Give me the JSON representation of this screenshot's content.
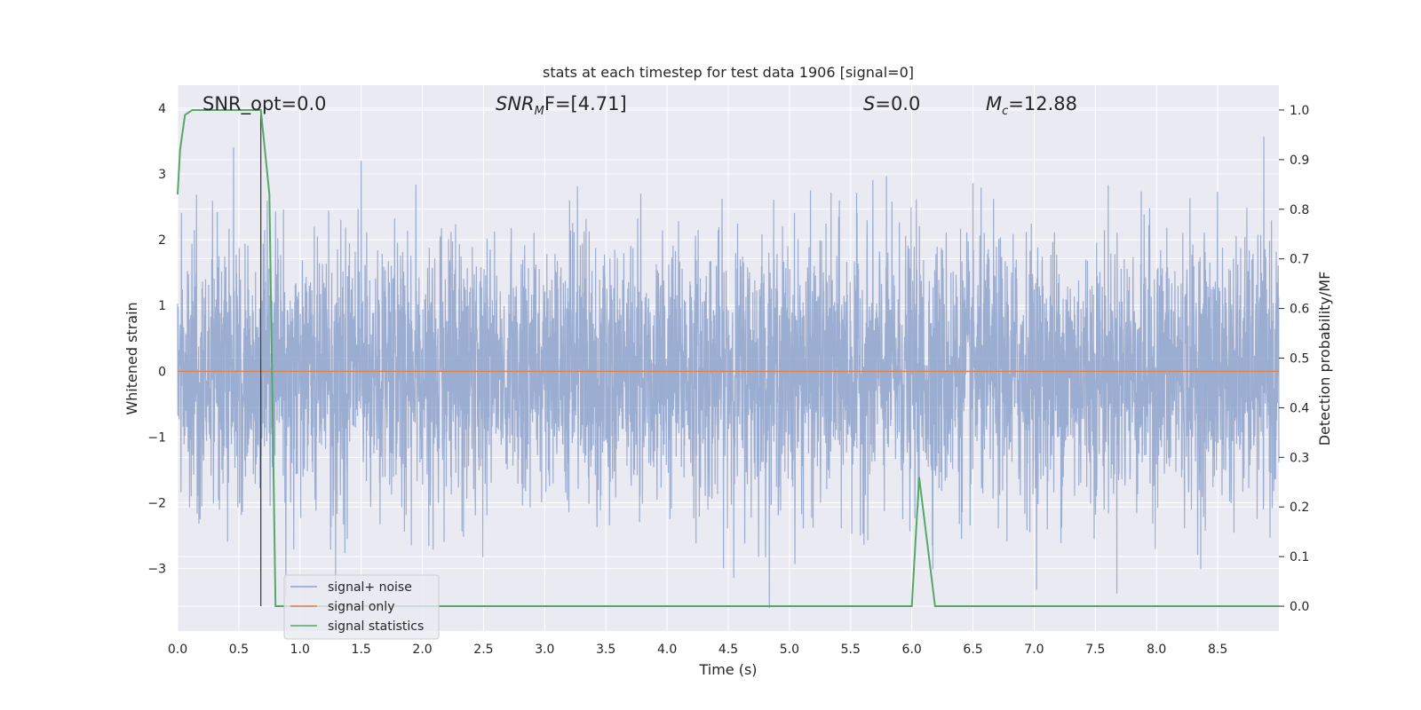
{
  "chart_data": {
    "type": "line",
    "title": "stats at each timestep for test data 1906 [signal=0]",
    "xlabel": "Time (s)",
    "ylabel": "Whitened strain",
    "y2label": "Detection probability/MF",
    "xlim": [
      0.0,
      9.0
    ],
    "ylim": [
      -3.95,
      4.35
    ],
    "y2lim": [
      -0.05,
      1.05
    ],
    "xticks": [
      "0.0",
      "0.5",
      "1.0",
      "1.5",
      "2.0",
      "2.5",
      "3.0",
      "3.5",
      "4.0",
      "4.5",
      "5.0",
      "5.5",
      "6.0",
      "6.5",
      "7.0",
      "7.5",
      "8.0",
      "8.5"
    ],
    "yticks": [
      "4",
      "3",
      "2",
      "1",
      "0",
      "−1",
      "−2",
      "−3"
    ],
    "y2ticks": [
      "1.0",
      "0.9",
      "0.8",
      "0.7",
      "0.6",
      "0.5",
      "0.4",
      "0.3",
      "0.2",
      "0.1",
      "0.0"
    ],
    "grid": true,
    "legend_position": "lower-left",
    "annotations": {
      "snr_opt": "SNR_opt=0.0",
      "snr_mf_base": "SNR",
      "snr_mf_sub": "M",
      "snr_mf_rest": "F=[4.71]",
      "s_base": "S",
      "s_rest": "=0.0",
      "mc_base": "M",
      "mc_sub": "c",
      "mc_rest": "=12.88"
    },
    "marker_line_x": 0.68,
    "series": [
      {
        "name": "signal+ noise",
        "color": "#8ea2cd",
        "axis": "left",
        "kind": "noise",
        "sample_rate": 512,
        "std": 1.0,
        "clip": [
          -3.6,
          4.0
        ]
      },
      {
        "name": "signal only",
        "color": "#dd8452",
        "axis": "left",
        "x": [
          0.0,
          9.0
        ],
        "values": [
          0.0,
          0.0
        ]
      },
      {
        "name": "signal statistics",
        "color": "#55a868",
        "axis": "right",
        "x": [
          0.0,
          0.02,
          0.06,
          0.12,
          0.2,
          0.4,
          0.6,
          0.68,
          0.75,
          0.8,
          1.0,
          3.0,
          5.0,
          6.0,
          6.06,
          6.19,
          6.3,
          7.0,
          9.0
        ],
        "values": [
          0.83,
          0.92,
          0.99,
          1.0,
          1.0,
          1.0,
          1.0,
          1.0,
          0.83,
          0.0,
          0.0,
          0.0,
          0.0,
          0.0,
          0.26,
          0.0,
          0.0,
          0.0,
          0.0
        ]
      }
    ]
  }
}
